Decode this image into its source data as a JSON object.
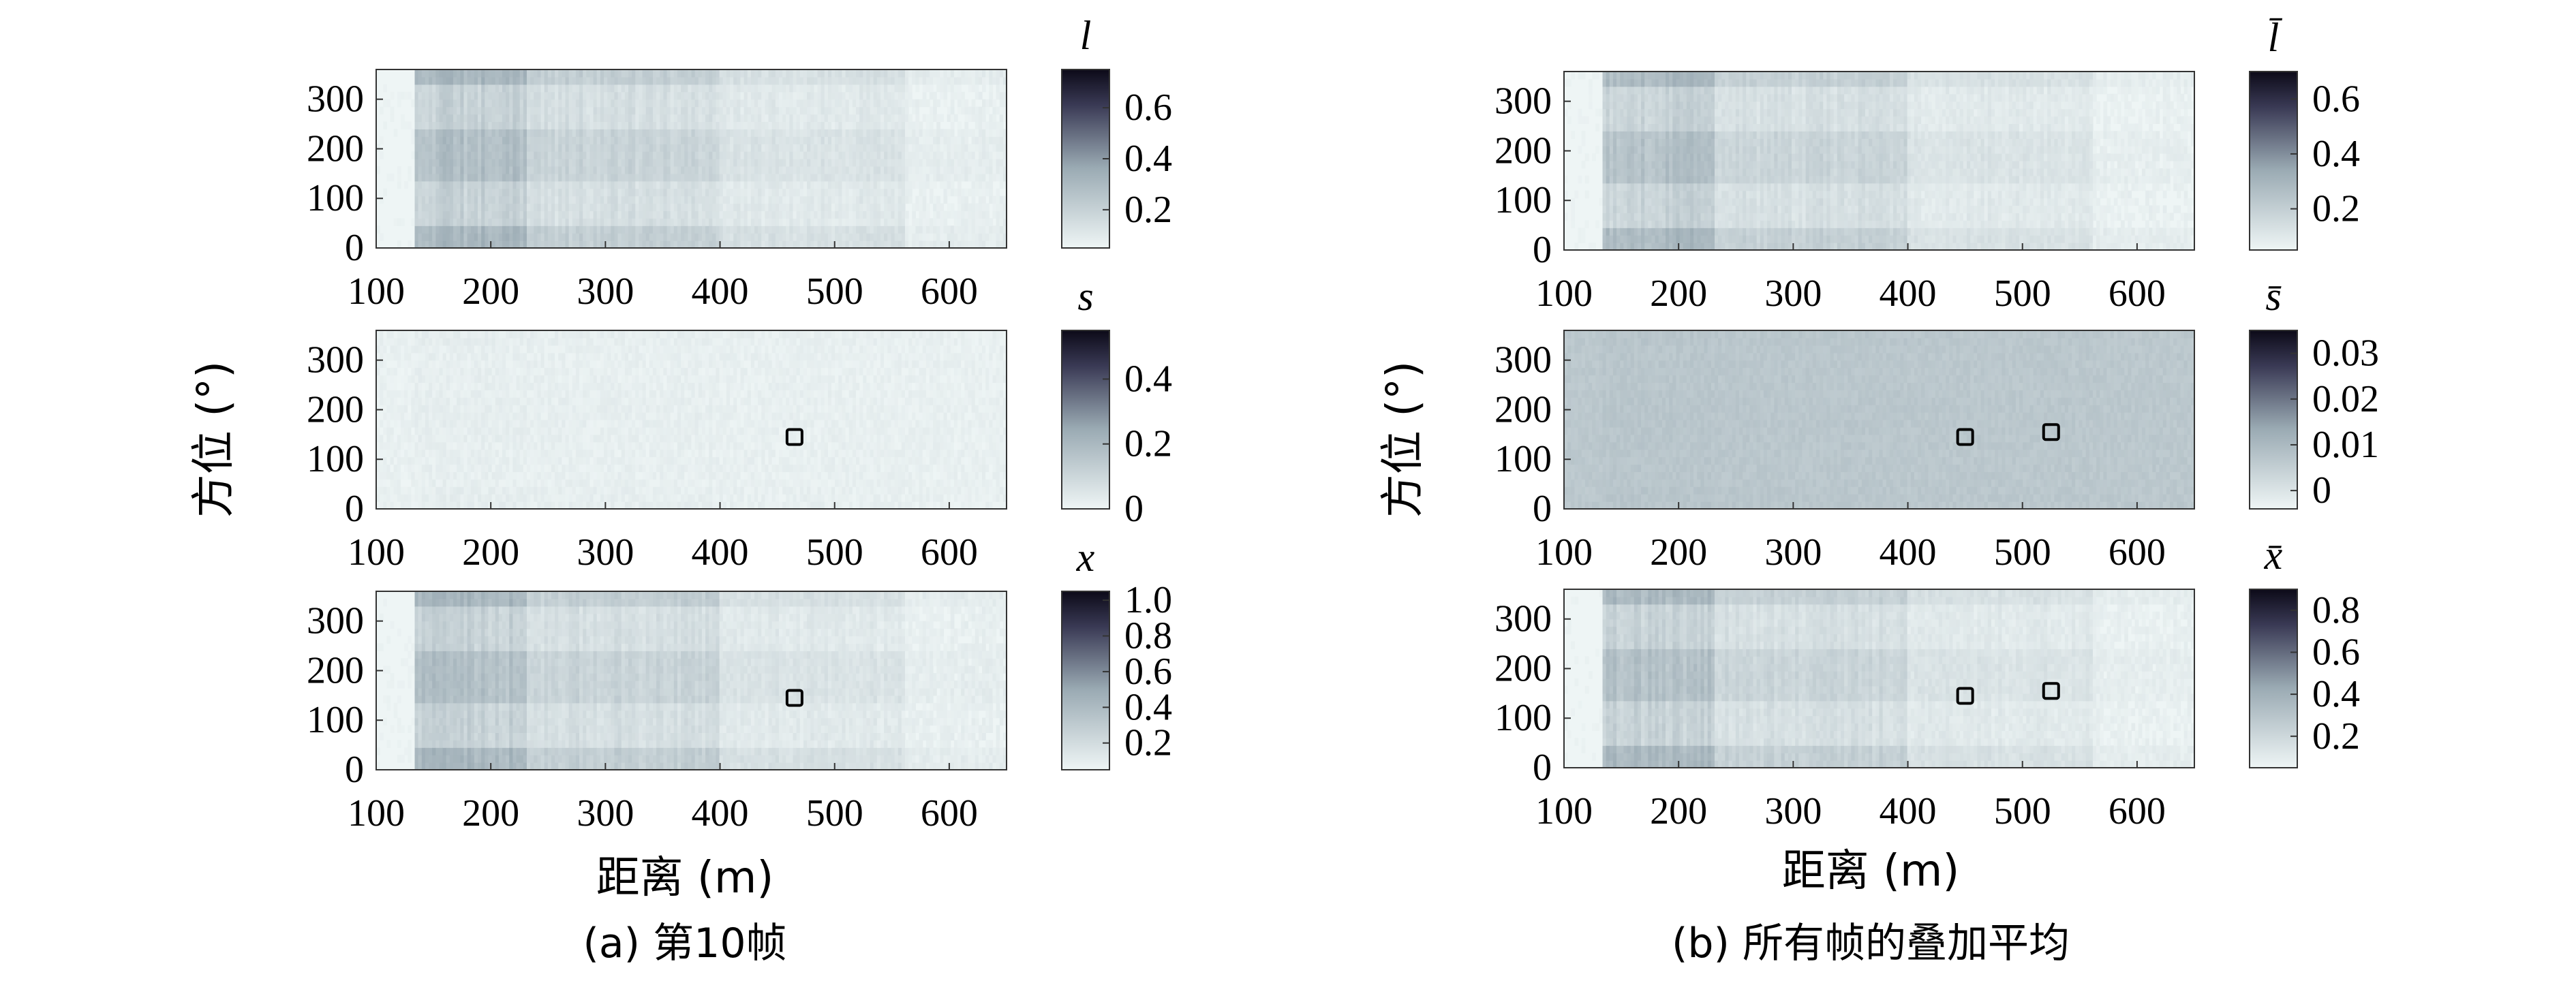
{
  "figure": {
    "panel_a": {
      "ylabel": "方位 (°)",
      "xlabel": "距离 (m)",
      "caption": "(a) 第10帧"
    },
    "panel_b": {
      "ylabel": "方位 (°)",
      "xlabel": "距离 (m)",
      "caption": "(b) 所有帧的叠加平均"
    }
  },
  "colors": {
    "low": "#eef5f5",
    "mid": "#9aaab3",
    "high": "#0c0a18",
    "box": "#000000"
  },
  "chart_data": [
    {
      "type": "heatmap",
      "panel": "a",
      "row": 1,
      "symbol": "l",
      "xlim": [
        100,
        650
      ],
      "ylim": [
        0,
        360
      ],
      "xticks": [
        "100",
        "200",
        "300",
        "400",
        "500",
        "600"
      ],
      "yticks": [
        "0",
        "100",
        "200",
        "300"
      ],
      "colorbar": {
        "min": 0.05,
        "max": 0.75,
        "ticks": [
          "0.2",
          "0.4",
          "0.6"
        ],
        "tick_values": [
          0.2,
          0.4,
          0.6
        ]
      },
      "intensity": 1.0,
      "background": 0.0,
      "markers": []
    },
    {
      "type": "heatmap",
      "panel": "a",
      "row": 2,
      "symbol": "s",
      "xlim": [
        100,
        650
      ],
      "ylim": [
        0,
        360
      ],
      "xticks": [
        "100",
        "200",
        "300",
        "400",
        "500",
        "600"
      ],
      "yticks": [
        "0",
        "100",
        "200",
        "300"
      ],
      "colorbar": {
        "min": 0,
        "max": 0.55,
        "ticks": [
          "0",
          "0.2",
          "0.4"
        ],
        "tick_values": [
          0,
          0.2,
          0.4
        ]
      },
      "intensity": 0.05,
      "background": 0.03,
      "markers": [
        {
          "x": 465,
          "y": 145
        }
      ]
    },
    {
      "type": "heatmap",
      "panel": "a",
      "row": 3,
      "symbol": "x",
      "xlim": [
        100,
        650
      ],
      "ylim": [
        0,
        360
      ],
      "xticks": [
        "100",
        "200",
        "300",
        "400",
        "500",
        "600"
      ],
      "yticks": [
        "0",
        "100",
        "200",
        "300"
      ],
      "colorbar": {
        "min": 0.05,
        "max": 1.05,
        "ticks": [
          "0.2",
          "0.4",
          "0.6",
          "0.8",
          "1.0"
        ],
        "tick_values": [
          0.2,
          0.4,
          0.6,
          0.8,
          1.0
        ]
      },
      "intensity": 1.0,
      "background": 0.0,
      "markers": [
        {
          "x": 465,
          "y": 145
        }
      ]
    },
    {
      "type": "heatmap",
      "panel": "b",
      "row": 1,
      "symbol": "l̄",
      "xlim": [
        100,
        650
      ],
      "ylim": [
        0,
        360
      ],
      "xticks": [
        "100",
        "200",
        "300",
        "400",
        "500",
        "600"
      ],
      "yticks": [
        "0",
        "100",
        "200",
        "300"
      ],
      "colorbar": {
        "min": 0.05,
        "max": 0.7,
        "ticks": [
          "0.2",
          "0.4",
          "0.6"
        ],
        "tick_values": [
          0.2,
          0.4,
          0.6
        ]
      },
      "intensity": 0.95,
      "background": 0.0,
      "markers": []
    },
    {
      "type": "heatmap",
      "panel": "b",
      "row": 2,
      "symbol": "s̄",
      "xlim": [
        100,
        650
      ],
      "ylim": [
        0,
        360
      ],
      "xticks": [
        "100",
        "200",
        "300",
        "400",
        "500",
        "600"
      ],
      "yticks": [
        "0",
        "100",
        "200",
        "300"
      ],
      "colorbar": {
        "min": -0.004,
        "max": 0.035,
        "ticks": [
          "0",
          "0.01",
          "0.02",
          "0.03"
        ],
        "tick_values": [
          0,
          0.01,
          0.02,
          0.03
        ]
      },
      "intensity": 0.05,
      "background": 0.3,
      "markers": [
        {
          "x": 450,
          "y": 145
        },
        {
          "x": 525,
          "y": 155
        }
      ]
    },
    {
      "type": "heatmap",
      "panel": "b",
      "row": 3,
      "symbol": "x̄",
      "xlim": [
        100,
        650
      ],
      "ylim": [
        0,
        360
      ],
      "xticks": [
        "100",
        "200",
        "300",
        "400",
        "500",
        "600"
      ],
      "yticks": [
        "0",
        "100",
        "200",
        "300"
      ],
      "colorbar": {
        "min": 0.05,
        "max": 0.9,
        "ticks": [
          "0.2",
          "0.4",
          "0.6",
          "0.8"
        ],
        "tick_values": [
          0.2,
          0.4,
          0.6,
          0.8
        ]
      },
      "intensity": 0.95,
      "background": 0.0,
      "markers": [
        {
          "x": 450,
          "y": 145
        },
        {
          "x": 525,
          "y": 155
        }
      ]
    }
  ]
}
